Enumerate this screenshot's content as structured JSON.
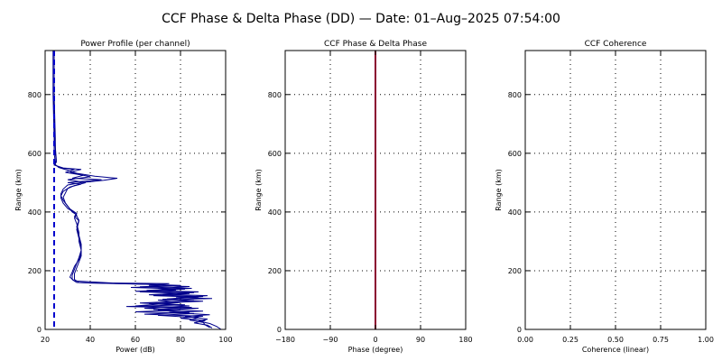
{
  "figure_title": "CCF Phase & Delta Phase (DD) — Date: 01–Aug–2025 07:54:00",
  "colors": {
    "channel_lines": "#00008b",
    "noise_line": "#0000cd",
    "phase_line": "#8b0030",
    "grid": "#000000"
  },
  "chart_data": [
    {
      "type": "line",
      "title": "Power Profile (per channel)",
      "xlabel": "Power (dB)",
      "ylabel": "Range (km)",
      "xlim": [
        20,
        100
      ],
      "ylim": [
        0,
        950
      ],
      "xticks": [
        20,
        40,
        60,
        80,
        100
      ],
      "yticks": [
        0,
        200,
        400,
        600,
        800
      ],
      "grid": true,
      "series": [
        {
          "style": "solid",
          "points": [
            [
              24,
              950
            ],
            [
              24,
              800
            ],
            [
              24.5,
              650
            ],
            [
              24.5,
              600
            ],
            [
              25,
              570
            ],
            [
              24,
              560
            ],
            [
              28,
              550
            ],
            [
              36,
              545
            ],
            [
              31,
              535
            ],
            [
              40,
              520
            ],
            [
              30,
              510
            ],
            [
              38,
              500
            ],
            [
              33,
              490
            ],
            [
              30,
              480
            ],
            [
              29,
              465
            ],
            [
              28,
              450
            ],
            [
              29,
              430
            ],
            [
              31,
              410
            ],
            [
              34,
              395
            ],
            [
              33,
              385
            ],
            [
              35,
              370
            ],
            [
              34,
              340
            ],
            [
              35,
              310
            ],
            [
              36,
              280
            ],
            [
              36,
              250
            ],
            [
              35,
              230
            ],
            [
              34,
              210
            ],
            [
              33,
              190
            ],
            [
              33,
              170
            ],
            [
              35,
              160
            ],
            [
              40,
              158
            ],
            [
              60,
              155
            ],
            [
              80,
              150
            ],
            [
              62,
              145
            ],
            [
              85,
              140
            ],
            [
              65,
              133
            ],
            [
              88,
              128
            ],
            [
              72,
              120
            ],
            [
              92,
              115
            ],
            [
              78,
              108
            ],
            [
              94,
              105
            ],
            [
              70,
              100
            ],
            [
              80,
              92
            ],
            [
              60,
              80
            ],
            [
              85,
              75
            ],
            [
              68,
              68
            ],
            [
              90,
              62
            ],
            [
              75,
              58
            ],
            [
              93,
              50
            ],
            [
              82,
              45
            ],
            [
              92,
              35
            ],
            [
              88,
              28
            ],
            [
              93,
              20
            ],
            [
              96,
              10
            ],
            [
              98,
              0
            ]
          ]
        },
        {
          "style": "solid",
          "points": [
            [
              23.5,
              950
            ],
            [
              23.5,
              800
            ],
            [
              24,
              650
            ],
            [
              24,
              600
            ],
            [
              24.5,
              570
            ],
            [
              24.5,
              560
            ],
            [
              27,
              550
            ],
            [
              33,
              545
            ],
            [
              29,
              535
            ],
            [
              37,
              525
            ],
            [
              32,
              515
            ],
            [
              45,
              510
            ],
            [
              30,
              500
            ],
            [
              36,
              495
            ],
            [
              31,
              485
            ],
            [
              28,
              470
            ],
            [
              27,
              455
            ],
            [
              28,
              440
            ],
            [
              30,
              420
            ],
            [
              32,
              400
            ],
            [
              34,
              390
            ],
            [
              33,
              380
            ],
            [
              34,
              360
            ],
            [
              35,
              330
            ],
            [
              35,
              300
            ],
            [
              36,
              270
            ],
            [
              35,
              245
            ],
            [
              34,
              225
            ],
            [
              33,
              205
            ],
            [
              32,
              185
            ],
            [
              32,
              170
            ],
            [
              34,
              160
            ],
            [
              45,
              157
            ],
            [
              70,
              153
            ],
            [
              78,
              148
            ],
            [
              58,
              143
            ],
            [
              82,
              137
            ],
            [
              60,
              130
            ],
            [
              86,
              125
            ],
            [
              66,
              118
            ],
            [
              90,
              112
            ],
            [
              74,
              104
            ],
            [
              86,
              98
            ],
            [
              62,
              90
            ],
            [
              82,
              84
            ],
            [
              56,
              78
            ],
            [
              88,
              72
            ],
            [
              70,
              65
            ],
            [
              84,
              58
            ],
            [
              64,
              52
            ],
            [
              90,
              45
            ],
            [
              80,
              38
            ],
            [
              91,
              30
            ],
            [
              86,
              22
            ],
            [
              92,
              14
            ],
            [
              94,
              5
            ]
          ]
        },
        {
          "style": "solid",
          "points": [
            [
              24,
              950
            ],
            [
              24,
              850
            ],
            [
              24,
              700
            ],
            [
              24.5,
              620
            ],
            [
              25,
              575
            ],
            [
              24,
              565
            ],
            [
              26,
              552
            ],
            [
              30,
              542
            ],
            [
              34,
              532
            ],
            [
              42,
              522
            ],
            [
              52,
              515
            ],
            [
              46,
              508
            ],
            [
              36,
              500
            ],
            [
              30,
              492
            ],
            [
              28,
              478
            ],
            [
              27,
              462
            ],
            [
              27,
              448
            ],
            [
              28,
              430
            ],
            [
              30,
              412
            ],
            [
              33,
              398
            ],
            [
              34,
              386
            ],
            [
              35,
              372
            ],
            [
              34,
              350
            ],
            [
              35,
              320
            ],
            [
              36,
              290
            ],
            [
              36,
              260
            ],
            [
              35,
              238
            ],
            [
              33,
              215
            ],
            [
              32,
              195
            ],
            [
              31,
              178
            ],
            [
              33,
              165
            ],
            [
              50,
              158
            ],
            [
              75,
              156
            ],
            [
              66,
              150
            ],
            [
              84,
              146
            ],
            [
              70,
              140
            ],
            [
              78,
              134
            ],
            [
              62,
              128
            ],
            [
              84,
              122
            ],
            [
              68,
              115
            ],
            [
              88,
              110
            ],
            [
              72,
              102
            ],
            [
              90,
              96
            ],
            [
              66,
              88
            ],
            [
              84,
              80
            ],
            [
              64,
              72
            ],
            [
              80,
              66
            ],
            [
              60,
              60
            ],
            [
              86,
              54
            ],
            [
              70,
              48
            ],
            [
              88,
              40
            ],
            [
              84,
              32
            ],
            [
              90,
              24
            ],
            [
              91,
              15
            ],
            [
              93,
              6
            ]
          ]
        },
        {
          "style": "dashed",
          "points": [
            [
              24,
              950
            ],
            [
              24,
              850
            ],
            [
              24,
              700
            ],
            [
              24,
              600
            ],
            [
              24,
              500
            ],
            [
              24,
              400
            ],
            [
              24,
              300
            ],
            [
              24,
              200
            ],
            [
              24,
              100
            ],
            [
              24,
              0
            ]
          ]
        }
      ]
    },
    {
      "type": "line",
      "title": "CCF Phase & Delta Phase",
      "xlabel": "Phase (degree)",
      "ylabel": "Range (km)",
      "xlim": [
        -180,
        180
      ],
      "ylim": [
        0,
        950
      ],
      "xticks": [
        -180,
        -90,
        0,
        90,
        180
      ],
      "yticks": [
        0,
        200,
        400,
        600,
        800
      ],
      "grid": true,
      "series": [
        {
          "style": "solid",
          "points": [
            [
              0,
              0
            ],
            [
              0,
              950
            ]
          ]
        }
      ]
    },
    {
      "type": "line",
      "title": "CCF Coherence",
      "xlabel": "Coherence (linear)",
      "ylabel": "Range (km)",
      "xlim": [
        0,
        1
      ],
      "ylim": [
        0,
        950
      ],
      "xticks": [
        0,
        0.25,
        0.5,
        0.75,
        1
      ],
      "xtick_labels": [
        "0.00",
        "0.25",
        "0.50",
        "0.75",
        "1.00"
      ],
      "yticks": [
        0,
        200,
        400,
        600,
        800
      ],
      "grid": true,
      "series": []
    }
  ]
}
